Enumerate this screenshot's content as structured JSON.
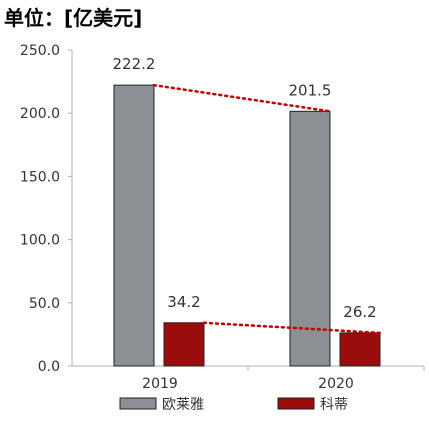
{
  "unit_label": "单位：[亿美元]",
  "colors": {
    "loreal": "#8c8f94",
    "coty": "#9b0d0d",
    "axis": "#b0b0b0",
    "bar_stroke": "#222222",
    "trend": "#c00000"
  },
  "chart_data": {
    "type": "bar",
    "title": "",
    "xlabel": "",
    "ylabel": "",
    "categories": [
      "2019",
      "2020"
    ],
    "series": [
      {
        "name": "欧莱雅",
        "values": [
          222.2,
          201.5
        ],
        "labels": [
          "222.2",
          "201.5"
        ]
      },
      {
        "name": "科蒂",
        "values": [
          34.2,
          26.2
        ],
        "labels": [
          "34.2",
          "26.2"
        ]
      }
    ],
    "ylim": [
      0,
      250
    ],
    "yticks": [
      0,
      50,
      100,
      150,
      200,
      250
    ],
    "ytick_labels": [
      "0.0",
      "50.0",
      "100.0",
      "150.0",
      "200.0",
      "250.0"
    ],
    "grid": false,
    "legend": "bottom",
    "trend_lines": "dotted lines connecting each series' bar tops between years"
  }
}
